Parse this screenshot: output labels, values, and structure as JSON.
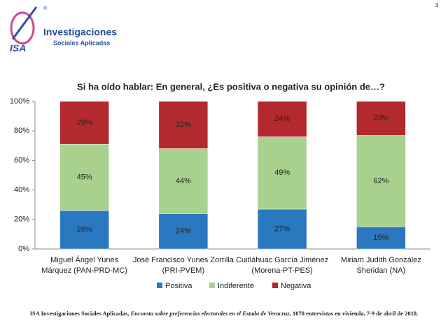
{
  "header": {
    "page": "3",
    "logo_mark": "ISA",
    "registered": "®",
    "logo_line1": "Investigaciones",
    "logo_line2": "Sociales Aplicadas"
  },
  "chart_data": {
    "type": "stacked_bar",
    "title": "Si ha oído hablar: En general, ¿Es positiva o negativa su opinión de…?",
    "categories": [
      [
        "Miguel Ángel Yunes",
        "Márquez (PAN-PRD-MC)"
      ],
      [
        "José Francisco Yunes Zorrilla",
        "(PRI-PVEM)"
      ],
      [
        "Cuitláhuac García Jiménez",
        "(Morena-PT-PES)"
      ],
      [
        "Miriam Judith González",
        "Sheridan (NA)"
      ]
    ],
    "series": [
      {
        "name": "Positiva",
        "color": "#2a78bf",
        "values": [
          26,
          24,
          27,
          15
        ],
        "value_labels": [
          "26%",
          "24%",
          "27%",
          "15%"
        ]
      },
      {
        "name": "Indiferente",
        "color": "#a9d18e",
        "values": [
          45,
          44,
          49,
          62
        ],
        "value_labels": [
          "45%",
          "44%",
          "49%",
          "62%"
        ]
      },
      {
        "name": "Negativa",
        "color": "#b3292d",
        "values": [
          29,
          32,
          24,
          23
        ],
        "value_labels": [
          "29%",
          "32%",
          "24%",
          "23%"
        ]
      }
    ],
    "ylim": [
      0,
      100
    ],
    "yticks": [
      {
        "value": 0,
        "label": "0%"
      },
      {
        "value": 20,
        "label": "20%"
      },
      {
        "value": 40,
        "label": "40%"
      },
      {
        "value": 60,
        "label": "60%"
      },
      {
        "value": 80,
        "label": "80%"
      },
      {
        "value": 100,
        "label": "100%"
      }
    ],
    "legend": "bottom"
  },
  "footer": {
    "part1": "ISA Investigaciones Sociales Aplicadas, ",
    "part2": "Encuesta sobre preferencias electorales en el Estado de Veracruz",
    "part3": ", 1070 entrevistas en vivienda, 7-9 de abril de 2018."
  }
}
